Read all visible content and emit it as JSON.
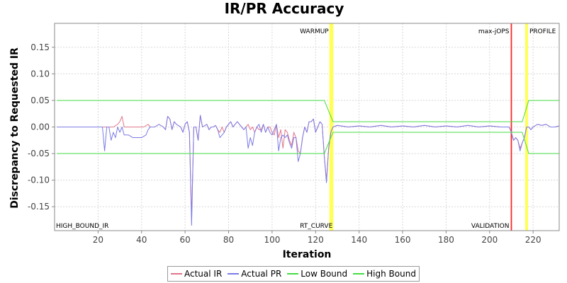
{
  "chart_data": {
    "type": "line",
    "title": "IR/PR Accuracy",
    "xlabel": "Iteration",
    "ylabel": "Discrepancy to Requested IR",
    "xlim": [
      0,
      232
    ],
    "ylim": [
      -0.195,
      0.195
    ],
    "x_ticks": [
      20,
      40,
      60,
      80,
      100,
      120,
      140,
      160,
      180,
      200,
      220
    ],
    "y_ticks": [
      0.15,
      0.1,
      0.05,
      0.0,
      -0.05,
      -0.1,
      -0.15
    ],
    "grid": true,
    "legend_position": "bottom",
    "colors": {
      "actual_ir": "#e0768a",
      "actual_pr": "#7b7be6",
      "low_bound": "#44dd44",
      "high_bound": "#44dd44",
      "warmup_marker": "#ffff55",
      "profile_marker": "#ffff55",
      "validation_marker": "#ff2222",
      "rt_curve_marker": "#ffff55"
    },
    "markers": [
      {
        "x": 127,
        "label": "WARMUP",
        "color": "#ffff55",
        "label_pos": "top"
      },
      {
        "x": 127.5,
        "label": "RT_CURVE",
        "color": "#ffff55",
        "label_pos": "bottom"
      },
      {
        "x": 210,
        "label": "max-jOPS",
        "color": "#ff2222",
        "label_pos": "top"
      },
      {
        "x": 210,
        "label": "VALIDATION",
        "color": "#ff2222",
        "label_pos": "bottom"
      },
      {
        "x": 217,
        "label": "PROFILE",
        "color": "#ffff55",
        "label_pos": "top"
      }
    ],
    "corner_labels": {
      "bottom_left": "HIGH_BOUND_IR"
    },
    "series": [
      {
        "name": "Actual IR",
        "color": "#e0768a",
        "points": [
          [
            1,
            0
          ],
          [
            22,
            0
          ],
          [
            23,
            0
          ],
          [
            25,
            0
          ],
          [
            27,
            0
          ],
          [
            29,
            0.005
          ],
          [
            30,
            0.01
          ],
          [
            31,
            0.02
          ],
          [
            32,
            0.0
          ],
          [
            34,
            0
          ],
          [
            38,
            0
          ],
          [
            41,
            0
          ],
          [
            43,
            0.005
          ],
          [
            44,
            0
          ],
          [
            46,
            0
          ],
          [
            48,
            0.005
          ],
          [
            50,
            0.0
          ],
          [
            51,
            -0.005
          ],
          [
            52,
            0.02
          ],
          [
            53,
            0.015
          ],
          [
            54,
            -0.005
          ],
          [
            55,
            0.01
          ],
          [
            56,
            0.005
          ],
          [
            58,
            0.0
          ],
          [
            59,
            -0.01
          ],
          [
            60,
            0.005
          ],
          [
            61,
            0.01
          ],
          [
            62,
            -0.01
          ],
          [
            63,
            -0.17
          ],
          [
            64,
            0.0
          ],
          [
            65,
            0.0
          ],
          [
            66,
            -0.025
          ],
          [
            67,
            0.022
          ],
          [
            68,
            0.0
          ],
          [
            70,
            0.005
          ],
          [
            71,
            -0.005
          ],
          [
            72,
            0.0
          ],
          [
            73,
            0.0
          ],
          [
            74,
            0.003
          ],
          [
            75,
            -0.005
          ],
          [
            76,
            -0.01
          ],
          [
            77,
            0.0
          ],
          [
            78,
            -0.01
          ],
          [
            79,
            0.0
          ],
          [
            80,
            0.005
          ],
          [
            81,
            0.01
          ],
          [
            82,
            0.0
          ],
          [
            83,
            0.005
          ],
          [
            84,
            0.01
          ],
          [
            85,
            0.005
          ],
          [
            86,
            0.0
          ],
          [
            87,
            -0.005
          ],
          [
            88,
            0.0
          ],
          [
            89,
            0.005
          ],
          [
            90,
            -0.005
          ],
          [
            91,
            0.0
          ],
          [
            92,
            -0.01
          ],
          [
            93,
            0.0
          ],
          [
            94,
            -0.005
          ],
          [
            95,
            -0.005
          ],
          [
            96,
            0.005
          ],
          [
            97,
            -0.01
          ],
          [
            98,
            0.0
          ],
          [
            99,
            0.0
          ],
          [
            100,
            -0.01
          ],
          [
            101,
            -0.015
          ],
          [
            102,
            0.005
          ],
          [
            103,
            -0.02
          ],
          [
            104,
            -0.005
          ],
          [
            105,
            -0.04
          ],
          [
            106,
            -0.005
          ],
          [
            107,
            -0.01
          ],
          [
            108,
            -0.025
          ],
          [
            109,
            -0.035
          ],
          [
            110,
            -0.01
          ],
          [
            111,
            -0.02
          ],
          [
            112,
            -0.045
          ],
          [
            113,
            -0.05
          ],
          [
            114,
            -0.02
          ],
          [
            115,
            0.0
          ],
          [
            116,
            -0.01
          ],
          [
            117,
            0.01
          ],
          [
            118,
            0.01
          ],
          [
            119,
            0.015
          ],
          [
            120,
            -0.01
          ],
          [
            121,
            0.0
          ],
          [
            122,
            0.01
          ],
          [
            123,
            0.005
          ],
          [
            124,
            -0.055
          ],
          [
            125,
            -0.1
          ],
          [
            126,
            -0.04
          ],
          [
            127,
            -0.01
          ],
          [
            128,
            0.0
          ],
          [
            130,
            0.003
          ],
          [
            135,
            0.0
          ],
          [
            140,
            0.002
          ],
          [
            145,
            0.0
          ],
          [
            150,
            0.003
          ],
          [
            155,
            0.0
          ],
          [
            160,
            0.002
          ],
          [
            165,
            0.0
          ],
          [
            170,
            0.003
          ],
          [
            175,
            0.0
          ],
          [
            180,
            0.002
          ],
          [
            185,
            0.0
          ],
          [
            190,
            0.003
          ],
          [
            195,
            0.0
          ],
          [
            200,
            0.002
          ],
          [
            205,
            0.0
          ],
          [
            209,
            0.0
          ],
          [
            210,
            -0.01
          ],
          [
            211,
            -0.025
          ],
          [
            212,
            -0.02
          ],
          [
            213,
            -0.025
          ],
          [
            214,
            -0.04
          ],
          [
            215,
            -0.03
          ],
          [
            216,
            -0.02
          ],
          [
            217,
            0.0
          ],
          [
            218,
            0.0
          ],
          [
            219,
            -0.005
          ],
          [
            220,
            0.0
          ],
          [
            222,
            0.005
          ],
          [
            224,
            0.003
          ],
          [
            226,
            0.005
          ],
          [
            228,
            0.0
          ],
          [
            230,
            0.0
          ],
          [
            232,
            0.002
          ]
        ]
      },
      {
        "name": "Actual PR",
        "color": "#7b7be6",
        "points": [
          [
            1,
            0
          ],
          [
            22,
            0
          ],
          [
            23,
            -0.045
          ],
          [
            24,
            0.0
          ],
          [
            25,
            0.0
          ],
          [
            26,
            -0.025
          ],
          [
            27,
            -0.01
          ],
          [
            28,
            -0.02
          ],
          [
            29,
            0.0
          ],
          [
            30,
            -0.01
          ],
          [
            31,
            0.0
          ],
          [
            32,
            -0.015
          ],
          [
            34,
            -0.015
          ],
          [
            36,
            -0.02
          ],
          [
            38,
            -0.02
          ],
          [
            40,
            -0.02
          ],
          [
            42,
            -0.015
          ],
          [
            43,
            -0.005
          ],
          [
            44,
            0.0
          ],
          [
            46,
            0.0
          ],
          [
            48,
            0.005
          ],
          [
            50,
            0.0
          ],
          [
            51,
            -0.005
          ],
          [
            52,
            0.02
          ],
          [
            53,
            0.015
          ],
          [
            54,
            -0.005
          ],
          [
            55,
            0.01
          ],
          [
            56,
            0.005
          ],
          [
            58,
            0.0
          ],
          [
            59,
            -0.01
          ],
          [
            60,
            0.005
          ],
          [
            61,
            0.01
          ],
          [
            62,
            -0.01
          ],
          [
            63,
            -0.185
          ],
          [
            64,
            0.0
          ],
          [
            65,
            0.0
          ],
          [
            66,
            -0.025
          ],
          [
            67,
            0.022
          ],
          [
            68,
            0.0
          ],
          [
            70,
            0.005
          ],
          [
            71,
            -0.005
          ],
          [
            72,
            0.0
          ],
          [
            73,
            0.0
          ],
          [
            74,
            0.003
          ],
          [
            75,
            -0.005
          ],
          [
            76,
            -0.02
          ],
          [
            77,
            -0.015
          ],
          [
            78,
            -0.01
          ],
          [
            79,
            0.0
          ],
          [
            80,
            0.005
          ],
          [
            81,
            0.01
          ],
          [
            82,
            0.0
          ],
          [
            83,
            0.005
          ],
          [
            84,
            0.01
          ],
          [
            85,
            0.005
          ],
          [
            86,
            0.0
          ],
          [
            87,
            -0.005
          ],
          [
            88,
            0.0
          ],
          [
            89,
            -0.04
          ],
          [
            90,
            -0.02
          ],
          [
            91,
            -0.035
          ],
          [
            92,
            -0.01
          ],
          [
            93,
            0.0
          ],
          [
            94,
            0.005
          ],
          [
            95,
            -0.01
          ],
          [
            96,
            0.005
          ],
          [
            97,
            -0.01
          ],
          [
            98,
            0.0
          ],
          [
            99,
            -0.01
          ],
          [
            100,
            -0.015
          ],
          [
            101,
            -0.005
          ],
          [
            102,
            0.005
          ],
          [
            103,
            -0.045
          ],
          [
            104,
            -0.02
          ],
          [
            105,
            -0.015
          ],
          [
            106,
            -0.02
          ],
          [
            107,
            -0.015
          ],
          [
            108,
            -0.03
          ],
          [
            109,
            -0.04
          ],
          [
            110,
            -0.02
          ],
          [
            111,
            -0.02
          ],
          [
            112,
            -0.065
          ],
          [
            113,
            -0.05
          ],
          [
            114,
            -0.02
          ],
          [
            115,
            0.0
          ],
          [
            116,
            -0.01
          ],
          [
            117,
            0.01
          ],
          [
            118,
            0.01
          ],
          [
            119,
            0.015
          ],
          [
            120,
            -0.01
          ],
          [
            121,
            0.0
          ],
          [
            122,
            0.01
          ],
          [
            123,
            0.005
          ],
          [
            124,
            -0.055
          ],
          [
            125,
            -0.105
          ],
          [
            126,
            -0.04
          ],
          [
            127,
            -0.01
          ],
          [
            128,
            0.0
          ],
          [
            130,
            0.003
          ],
          [
            135,
            0.0
          ],
          [
            140,
            0.002
          ],
          [
            145,
            0.0
          ],
          [
            150,
            0.003
          ],
          [
            155,
            0.0
          ],
          [
            160,
            0.002
          ],
          [
            165,
            0.0
          ],
          [
            170,
            0.003
          ],
          [
            175,
            0.0
          ],
          [
            180,
            0.002
          ],
          [
            185,
            0.0
          ],
          [
            190,
            0.003
          ],
          [
            195,
            0.0
          ],
          [
            200,
            0.002
          ],
          [
            205,
            0.0
          ],
          [
            209,
            0.0
          ],
          [
            210,
            -0.01
          ],
          [
            211,
            -0.025
          ],
          [
            212,
            -0.02
          ],
          [
            213,
            -0.025
          ],
          [
            214,
            -0.045
          ],
          [
            215,
            -0.03
          ],
          [
            216,
            -0.02
          ],
          [
            217,
            0.0
          ],
          [
            218,
            0.0
          ],
          [
            219,
            -0.005
          ],
          [
            220,
            0.0
          ],
          [
            222,
            0.005
          ],
          [
            224,
            0.003
          ],
          [
            226,
            0.005
          ],
          [
            228,
            0.0
          ],
          [
            230,
            0.0
          ],
          [
            232,
            0.002
          ]
        ]
      },
      {
        "name": "Low Bound",
        "color": "#44dd44",
        "points": [
          [
            1,
            -0.05
          ],
          [
            124,
            -0.05
          ],
          [
            128,
            -0.01
          ],
          [
            215,
            -0.01
          ],
          [
            218,
            -0.05
          ],
          [
            232,
            -0.05
          ]
        ]
      },
      {
        "name": "High Bound",
        "color": "#44dd44",
        "points": [
          [
            1,
            0.05
          ],
          [
            124,
            0.05
          ],
          [
            128,
            0.01
          ],
          [
            215,
            0.01
          ],
          [
            218,
            0.05
          ],
          [
            232,
            0.05
          ]
        ]
      }
    ]
  }
}
